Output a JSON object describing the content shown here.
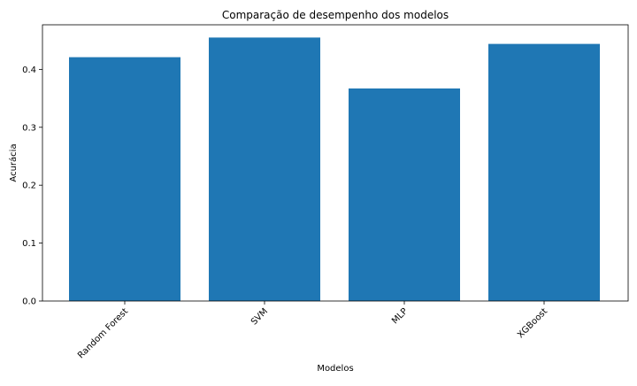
{
  "chart_data": {
    "type": "bar",
    "title": "Comparação de desempenho dos modelos",
    "xlabel": "Modelos",
    "ylabel": "Acurácia",
    "categories": [
      "Random Forest",
      "SVM",
      "MLP",
      "XGBoost"
    ],
    "values": [
      0.421,
      0.455,
      0.367,
      0.444
    ],
    "ylim": [
      0,
      0.477
    ],
    "yticks": [
      0.0,
      0.1,
      0.2,
      0.3,
      0.4
    ],
    "ytick_labels": [
      "0.0",
      "0.1",
      "0.2",
      "0.3",
      "0.4"
    ],
    "bar_color": "#1f77b4",
    "grid": false,
    "xtick_rotation_deg": 45
  }
}
